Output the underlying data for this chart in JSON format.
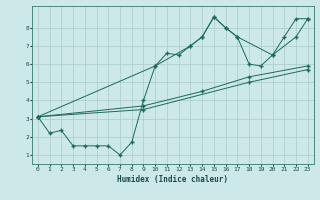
{
  "title": "",
  "xlabel": "Humidex (Indice chaleur)",
  "background_color": "#cce8e8",
  "grid_color": "#aacccc",
  "line_color": "#1a6b5a",
  "xlim": [
    -0.5,
    23.5
  ],
  "ylim": [
    0.5,
    9.2
  ],
  "xticks": [
    0,
    1,
    2,
    3,
    4,
    5,
    6,
    7,
    8,
    9,
    10,
    11,
    12,
    13,
    14,
    15,
    16,
    17,
    18,
    19,
    20,
    21,
    22,
    23
  ],
  "yticks": [
    1,
    2,
    3,
    4,
    5,
    6,
    7,
    8
  ],
  "series1_x": [
    0,
    1,
    2,
    3,
    4,
    5,
    6,
    7,
    8,
    9,
    10,
    11,
    12,
    13,
    14,
    15,
    16,
    17,
    18,
    19,
    20,
    21,
    22,
    23
  ],
  "series1_y": [
    3.1,
    2.2,
    2.35,
    1.5,
    1.5,
    1.5,
    1.5,
    1.0,
    1.7,
    4.0,
    5.9,
    6.6,
    6.5,
    7.0,
    7.5,
    8.6,
    8.0,
    7.5,
    6.0,
    5.9,
    6.5,
    7.5,
    8.5,
    8.5
  ],
  "series2_x": [
    0,
    10,
    13,
    14,
    15,
    16,
    17,
    20,
    22,
    23
  ],
  "series2_y": [
    3.1,
    5.9,
    7.0,
    7.5,
    8.6,
    8.0,
    7.5,
    6.5,
    7.5,
    8.5
  ],
  "series3_x": [
    0,
    9,
    14,
    18,
    23
  ],
  "series3_y": [
    3.1,
    3.7,
    4.5,
    5.3,
    5.9
  ],
  "series4_x": [
    0,
    9,
    18,
    23
  ],
  "series4_y": [
    3.1,
    3.5,
    5.0,
    5.7
  ]
}
